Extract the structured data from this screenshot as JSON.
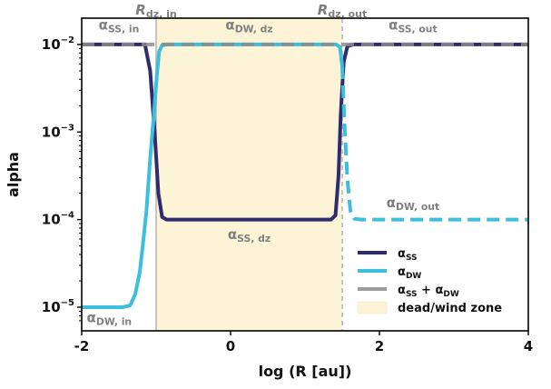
{
  "chart_data": {
    "type": "line",
    "xlabel": "log (R [au])",
    "ylabel": "alpha",
    "xlim": [
      -2,
      4
    ],
    "ylim_log10": [
      -5.27,
      -1.7
    ],
    "yscale": "log",
    "x_ticks": [
      "-2",
      "0",
      "2",
      "4"
    ],
    "x_tick_values": [
      -2,
      0,
      2,
      4
    ],
    "y_ticks": [
      {
        "exp": -5,
        "base": "10",
        "sup": "−5"
      },
      {
        "exp": -4,
        "base": "10",
        "sup": "−4"
      },
      {
        "exp": -3,
        "base": "10",
        "sup": "−3"
      },
      {
        "exp": -2,
        "base": "10",
        "sup": "−2"
      }
    ],
    "dead_zone": {
      "x_start": -1.0,
      "x_end": 1.5,
      "color": "#fdf3d7"
    },
    "vlines": [
      {
        "x": -1.0,
        "style": "solid",
        "label_main": "R",
        "label_sub": "dz, in"
      },
      {
        "x": 1.5,
        "style": "dashed",
        "label_main": "R",
        "label_sub": "dz, out"
      }
    ],
    "series": [
      {
        "name_main": "α",
        "name_sub": "SS",
        "color": "#2e2c6b",
        "style": "solid",
        "points": [
          [
            -2,
            -2
          ],
          [
            -1.15,
            -2
          ],
          [
            -1.08,
            -2.3
          ],
          [
            -1.02,
            -3
          ],
          [
            -0.97,
            -3.7
          ],
          [
            -0.92,
            -3.97
          ],
          [
            -0.86,
            -4
          ],
          [
            1.35,
            -4
          ],
          [
            1.41,
            -3.95
          ],
          [
            1.45,
            -3.5
          ],
          [
            1.48,
            -2.8
          ],
          [
            1.52,
            -2.2
          ],
          [
            1.57,
            -2.02
          ],
          [
            1.65,
            -2
          ],
          [
            4,
            -2
          ]
        ]
      },
      {
        "name_main": "α",
        "name_sub": "DW",
        "color": "#3cbfdc",
        "style": "mixed",
        "points": [
          [
            -2,
            -5
          ],
          [
            -1.45,
            -5
          ],
          [
            -1.35,
            -4.98
          ],
          [
            -1.28,
            -4.85
          ],
          [
            -1.22,
            -4.6
          ],
          [
            -1.18,
            -4.3
          ],
          [
            -1.13,
            -3.9
          ],
          [
            -1.08,
            -3.3
          ],
          [
            -1.03,
            -2.8
          ],
          [
            -0.99,
            -2.35
          ],
          [
            -0.96,
            -2.08
          ],
          [
            -0.92,
            -2.01
          ],
          [
            -0.85,
            -2
          ],
          [
            1.42,
            -2
          ],
          [
            1.47,
            -2.03
          ],
          [
            1.5,
            -2.25
          ],
          [
            1.53,
            -2.9
          ],
          [
            1.57,
            -3.55
          ],
          [
            1.61,
            -3.9
          ],
          [
            1.66,
            -3.99
          ],
          [
            1.75,
            -4
          ],
          [
            4,
            -4
          ]
        ],
        "dash_from_x": 1.5
      },
      {
        "name_main": "α",
        "name_sub": "SS",
        "name_plus": " + ",
        "name_main2": "α",
        "name_sub2": "DW",
        "color": "#8c8c8c",
        "style": "dashed",
        "points": [
          [
            -2,
            -2
          ],
          [
            4,
            -2
          ]
        ]
      }
    ],
    "region_annotations": [
      {
        "main": "α",
        "sub": "SS, in",
        "x": -1.5,
        "y": -1.83,
        "size": 15
      },
      {
        "main": "α",
        "sub": "DW, dz",
        "x": 0.25,
        "y": -1.83,
        "size": 15
      },
      {
        "main": "α",
        "sub": "SS, out",
        "x": 2.45,
        "y": -1.83,
        "size": 15
      },
      {
        "main": "α",
        "sub": "SS, dz",
        "x": 0.25,
        "y": -4.22,
        "size": 15
      },
      {
        "main": "α",
        "sub": "DW, out",
        "x": 2.45,
        "y": -3.86,
        "size": 15
      },
      {
        "main": "α",
        "sub": "DW, in",
        "x": -1.63,
        "y": -5.17,
        "size": 15
      }
    ],
    "legend": {
      "placement": "bottom-right",
      "last_label": "dead/wind zone"
    }
  }
}
